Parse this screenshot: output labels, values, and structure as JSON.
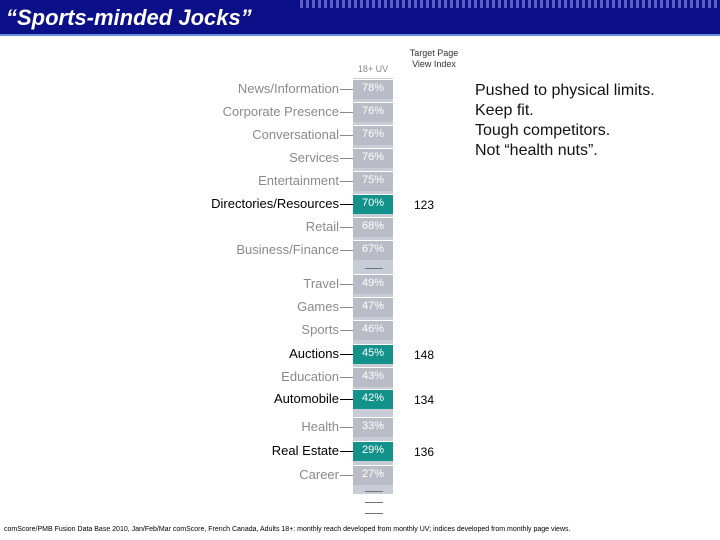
{
  "header": {
    "title": "“Sports-minded Jocks”"
  },
  "columns": {
    "uv_label": "18+ UV",
    "index_label_line1": "Target Page",
    "index_label_line2": "View Index"
  },
  "callout": {
    "lines": [
      "Pushed to physical limits.",
      "Keep fit.",
      "Tough competitors.",
      "Not “health nuts”."
    ]
  },
  "chart_data": {
    "type": "table",
    "title": "“Sports-minded Jocks”",
    "columns": [
      "18+ UV",
      "Target Page View Index"
    ],
    "rows": [
      {
        "category": "News/Information",
        "uv": "78%",
        "index": "",
        "highlight": false
      },
      {
        "category": "Corporate Presence",
        "uv": "76%",
        "index": "",
        "highlight": false
      },
      {
        "category": "Conversational",
        "uv": "76%",
        "index": "",
        "highlight": false
      },
      {
        "category": "Services",
        "uv": "76%",
        "index": "",
        "highlight": false
      },
      {
        "category": "Entertainment",
        "uv": "75%",
        "index": "",
        "highlight": false
      },
      {
        "category": "Directories/Resources",
        "uv": "70%",
        "index": "123",
        "highlight": true
      },
      {
        "category": "Retail",
        "uv": "68%",
        "index": "",
        "highlight": false
      },
      {
        "category": "Business/Finance",
        "uv": "67%",
        "index": "",
        "highlight": false
      },
      {
        "category": "Travel",
        "uv": "49%",
        "index": "",
        "highlight": false
      },
      {
        "category": "Games",
        "uv": "47%",
        "index": "",
        "highlight": false
      },
      {
        "category": "Sports",
        "uv": "46%",
        "index": "",
        "highlight": false
      },
      {
        "category": "Auctions",
        "uv": "45%",
        "index": "148",
        "highlight": true
      },
      {
        "category": "Education",
        "uv": "43%",
        "index": "",
        "highlight": false
      },
      {
        "category": "Automobile",
        "uv": "42%",
        "index": "134",
        "highlight": true
      },
      {
        "category": "Health",
        "uv": "33%",
        "index": "",
        "highlight": false
      },
      {
        "category": "Real Estate",
        "uv": "29%",
        "index": "136",
        "highlight": true
      },
      {
        "category": "Career",
        "uv": "27%",
        "index": "",
        "highlight": false
      }
    ],
    "colors": {
      "highlight": "#12928a",
      "normal": "#b9bcc6",
      "header": "#0b0f88"
    }
  },
  "footnote": "comScore/PMB Fusion Data Base 2010, Jan/Feb/Mar comScore, French Canada, Adults 18+: monthly reach developed from monthly UV; indices developed from monthly page views."
}
